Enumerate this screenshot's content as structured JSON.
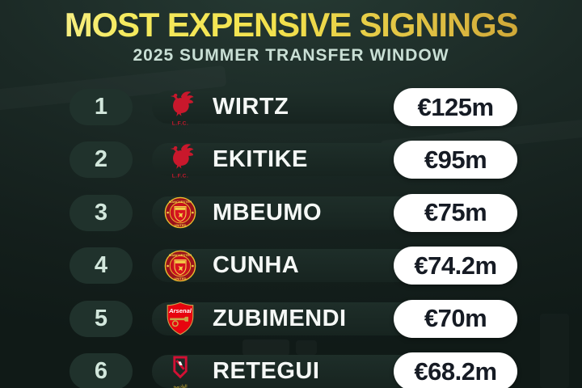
{
  "header": {
    "title": "MOST EXPENSIVE SIGNINGS",
    "subtitle": "2025 SUMMER TRANSFER WINDOW"
  },
  "colors": {
    "background": "#16211e",
    "title_gradient_start": "#f9f3a8",
    "title_gradient_end": "#c5982f",
    "subtitle_text": "#c9dfd5",
    "rank_box_bg": "#20322c",
    "rank_text": "#d2e7dc",
    "panel_bg": "#1b2a26",
    "fee_pill_bg": "#ffffff",
    "fee_text": "#161b24",
    "player_text": "#f5f8f6",
    "liverpool_red": "#c9182c",
    "man_utd_red": "#c8121d",
    "man_utd_gold": "#f2d049",
    "arsenal_red": "#e7040f",
    "arsenal_gold": "#caa64a",
    "qadsiah_red": "#d21034",
    "qadsiah_gold": "#e8c133"
  },
  "rows": [
    {
      "rank": "1",
      "player": "WIRTZ",
      "fee": "€125m",
      "club_icon": "liverpool-badge-icon",
      "badge_text": [
        "L.F.C."
      ]
    },
    {
      "rank": "2",
      "player": "EKITIKE",
      "fee": "€95m",
      "club_icon": "liverpool-badge-icon",
      "badge_text": [
        "L.F.C."
      ]
    },
    {
      "rank": "3",
      "player": "MBEUMO",
      "fee": "€75m",
      "club_icon": "man-utd-badge-icon",
      "badge_text": [
        "MANCHESTER",
        "UNITED"
      ]
    },
    {
      "rank": "4",
      "player": "CUNHA",
      "fee": "€74.2m",
      "club_icon": "man-utd-badge-icon",
      "badge_text": [
        "MANCHESTER",
        "UNITED"
      ]
    },
    {
      "rank": "5",
      "player": "ZUBIMENDI",
      "fee": "€70m",
      "club_icon": "arsenal-badge-icon",
      "badge_text": [
        "Arsenal"
      ]
    },
    {
      "rank": "6",
      "player": "RETEGUI",
      "fee": "€68.2m",
      "club_icon": "al-qadsiah-badge-icon",
      "badge_text": [
        "القادسية"
      ]
    }
  ]
}
